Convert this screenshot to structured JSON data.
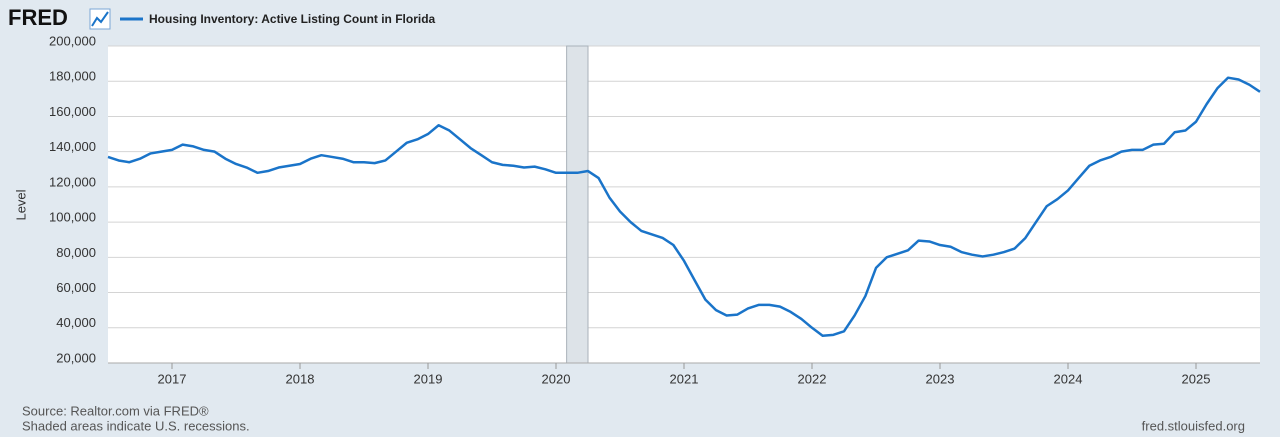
{
  "brand": "FRED",
  "chart_data": {
    "type": "line",
    "title": "Housing Inventory: Active Listing Count in Florida",
    "y_label": "Level",
    "source": "Source: Realtor.com via FRED®",
    "note": "Shaded areas indicate U.S. recessions.",
    "site": "fred.stlouisfed.org",
    "x": [
      2016.5,
      2016.583,
      2016.667,
      2016.75,
      2016.833,
      2016.917,
      2017.0,
      2017.083,
      2017.167,
      2017.25,
      2017.333,
      2017.417,
      2017.5,
      2017.583,
      2017.667,
      2017.75,
      2017.833,
      2017.917,
      2018.0,
      2018.083,
      2018.167,
      2018.25,
      2018.333,
      2018.417,
      2018.5,
      2018.583,
      2018.667,
      2018.75,
      2018.833,
      2018.917,
      2019.0,
      2019.083,
      2019.167,
      2019.25,
      2019.333,
      2019.417,
      2019.5,
      2019.583,
      2019.667,
      2019.75,
      2019.833,
      2019.917,
      2020.0,
      2020.083,
      2020.167,
      2020.25,
      2020.333,
      2020.417,
      2020.5,
      2020.583,
      2020.667,
      2020.75,
      2020.833,
      2020.917,
      2021.0,
      2021.083,
      2021.167,
      2021.25,
      2021.333,
      2021.417,
      2021.5,
      2021.583,
      2021.667,
      2021.75,
      2021.833,
      2021.917,
      2022.0,
      2022.083,
      2022.167,
      2022.25,
      2022.333,
      2022.417,
      2022.5,
      2022.583,
      2022.667,
      2022.75,
      2022.833,
      2022.917,
      2023.0,
      2023.083,
      2023.167,
      2023.25,
      2023.333,
      2023.417,
      2023.5,
      2023.583,
      2023.667,
      2023.75,
      2023.833,
      2023.917,
      2024.0,
      2024.083,
      2024.167,
      2024.25,
      2024.333,
      2024.417,
      2024.5,
      2024.583,
      2024.667,
      2024.75,
      2024.833,
      2024.917,
      2025.0,
      2025.083,
      2025.167,
      2025.25,
      2025.333,
      2025.417,
      2025.5
    ],
    "series": [
      {
        "name": "Housing Inventory: Active Listing Count in Florida",
        "color": "#1a74c9",
        "values": [
          137000,
          135000,
          134000,
          136000,
          139000,
          140000,
          141000,
          144000,
          143000,
          141000,
          140000,
          136000,
          133000,
          131000,
          128000,
          129000,
          131000,
          132000,
          133000,
          136000,
          138000,
          137000,
          136000,
          134000,
          134000,
          133500,
          135000,
          140000,
          145000,
          147000,
          150000,
          155000,
          152000,
          147000,
          142000,
          138000,
          134000,
          132500,
          132000,
          131000,
          131500,
          130000,
          128000,
          128000,
          128000,
          129000,
          125000,
          114000,
          106000,
          100000,
          95000,
          93000,
          91000,
          87000,
          78000,
          67000,
          56000,
          50000,
          47000,
          47500,
          51000,
          53000,
          53000,
          52000,
          49000,
          45000,
          40000,
          35500,
          36000,
          38000,
          47000,
          58000,
          74000,
          80000,
          82000,
          84000,
          89500,
          89000,
          87000,
          86000,
          83000,
          81500,
          80500,
          81500,
          83000,
          85000,
          91000,
          100000,
          109000,
          113000,
          118000,
          125000,
          132000,
          135000,
          137000,
          140000,
          141000,
          141000,
          144000,
          144500,
          151000,
          152000,
          157000,
          167000,
          176000,
          182000,
          181000,
          178000,
          174000
        ]
      }
    ],
    "recessions": [
      [
        2020.083,
        2020.25
      ]
    ],
    "xlim": [
      2016.5,
      2025.5
    ],
    "xticks": [
      2017,
      2018,
      2019,
      2020,
      2021,
      2022,
      2023,
      2024,
      2025
    ],
    "ylim": [
      20000,
      200000
    ],
    "yticks": [
      {
        "value": 20000,
        "label": "20,000"
      },
      {
        "value": 40000,
        "label": "40,000"
      },
      {
        "value": 60000,
        "label": "60,000"
      },
      {
        "value": 80000,
        "label": "80,000"
      },
      {
        "value": 100000,
        "label": "100,000"
      },
      {
        "value": 120000,
        "label": "120,000"
      },
      {
        "value": 140000,
        "label": "140,000"
      },
      {
        "value": 160000,
        "label": "160,000"
      },
      {
        "value": 180000,
        "label": "180,000"
      },
      {
        "value": 200000,
        "label": "200,000"
      }
    ],
    "grid": true
  }
}
